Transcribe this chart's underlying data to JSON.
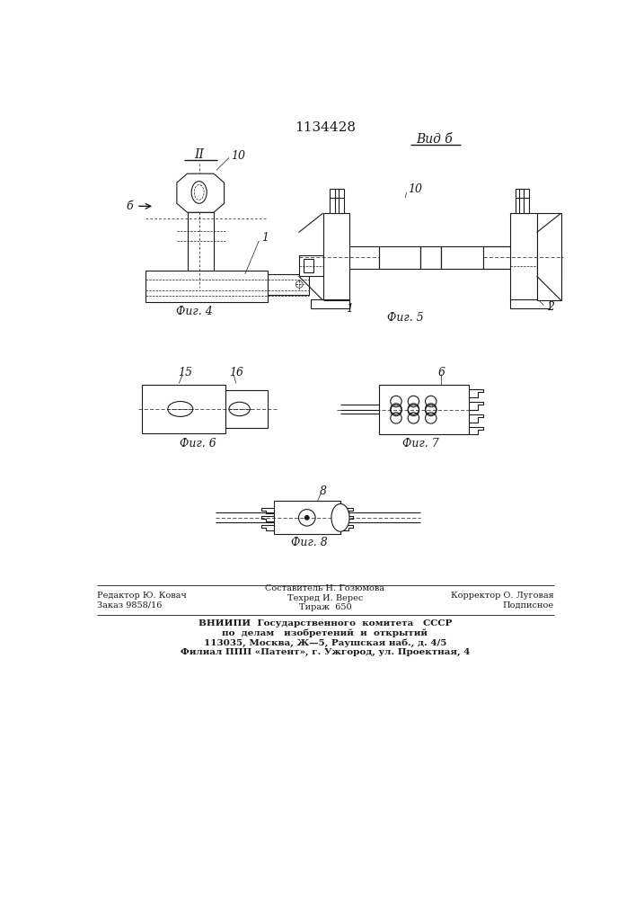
{
  "title": "1134428",
  "background_color": "#ffffff",
  "line_color": "#1a1a1a",
  "fig4_label": "Фиг. 4",
  "fig5_label": "Фиг. 5",
  "fig6_label": "Фиг. 6",
  "fig7_label": "Фиг. 7",
  "fig8_label": "Фиг. 8",
  "label_II": "II",
  "label_vid_b": "Вид б",
  "label_b_arrow": "б",
  "label_1a": "1",
  "label_10a": "10",
  "label_10b": "10",
  "label_1b": "1",
  "label_2b": "2",
  "label_15": "15",
  "label_16": "16",
  "label_6": "6",
  "label_8": "8",
  "footer_col1_line1": "Редактор Ю. Ковач",
  "footer_col1_line2": "Заказ 9858/16",
  "footer_col2_line0": "Составитель Н. Гозюмова",
  "footer_col2_line1": "Техред И. Верес",
  "footer_col2_line2": "Тираж  650",
  "footer_col3_line1": "Корректор О. Луговая",
  "footer_col3_line2": "Подписное",
  "footer_vnipi1": "ВНИИПИ  Государственного  комитета   СССР",
  "footer_vnipi2": "по  делам   изобретений  и  открытий",
  "footer_vnipi3": "113035, Москва, Ж—5, Раушская наб., д. 4/5",
  "footer_vnipi4": "Филиал ППП «Патент», г. Ужгород, ул. Проектная, 4"
}
